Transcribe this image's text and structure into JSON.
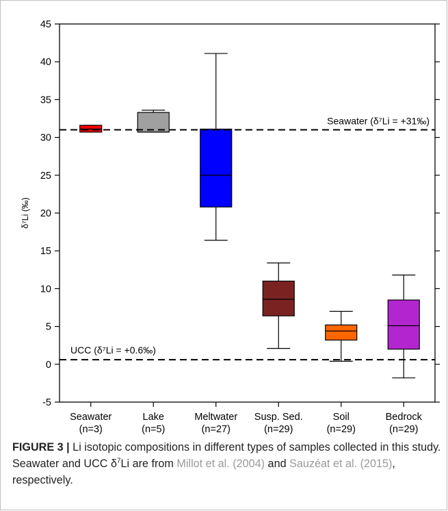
{
  "chart_data": {
    "type": "box",
    "ylabel": "δ⁷Li (‰)",
    "ylim": [
      -5,
      45
    ],
    "yticks": [
      -5,
      0,
      5,
      10,
      15,
      20,
      25,
      30,
      35,
      40,
      45
    ],
    "categories": [
      {
        "name": "Seawater",
        "n": "(n=3)"
      },
      {
        "name": "Lake",
        "n": "(n=5)"
      },
      {
        "name": "Meltwater",
        "n": "(n=27)"
      },
      {
        "name": "Susp. Sed.",
        "n": "(n=29)"
      },
      {
        "name": "Soil",
        "n": "(n=29)"
      },
      {
        "name": "Bedrock",
        "n": "(n=29)"
      }
    ],
    "boxes": [
      {
        "min": 30.7,
        "q1": 30.7,
        "median": 31.1,
        "q3": 31.6,
        "max": 31.6,
        "color": "#ff0000"
      },
      {
        "min": 30.7,
        "q1": 30.7,
        "median": 30.7,
        "q3": 33.3,
        "max": 33.6,
        "color": "#a0a0a0"
      },
      {
        "min": 16.4,
        "q1": 20.8,
        "median": 25.0,
        "q3": 31.1,
        "max": 41.1,
        "color": "#0000ff"
      },
      {
        "min": 2.1,
        "q1": 6.4,
        "median": 8.6,
        "q3": 11.0,
        "max": 13.4,
        "color": "#7a2222"
      },
      {
        "min": 0.4,
        "q1": 3.2,
        "median": 4.4,
        "q3": 5.2,
        "max": 7.0,
        "color": "#ff6600"
      },
      {
        "min": -1.8,
        "q1": 2.0,
        "median": 5.1,
        "q3": 8.5,
        "max": 11.8,
        "color": "#b326cf"
      }
    ],
    "reference_lines": [
      {
        "value": 31,
        "label": "Seawater (δ⁷Li = +31‰)",
        "position": "top-right"
      },
      {
        "value": 0.6,
        "label": "UCC (δ⁷Li = +0.6‰)",
        "position": "top-left"
      }
    ],
    "grid": false
  },
  "caption": {
    "figure_label": "FIGURE 3 |",
    "part1": " Li isotopic compositions in different types of samples collected in this study. Seawater and UCC δ",
    "sup": "7",
    "part2": "Li are from ",
    "ref1": "Millot et al. (2004)",
    "part3": " and ",
    "ref2": "Sauzéat et al. (2015)",
    "part4": ", respectively."
  }
}
